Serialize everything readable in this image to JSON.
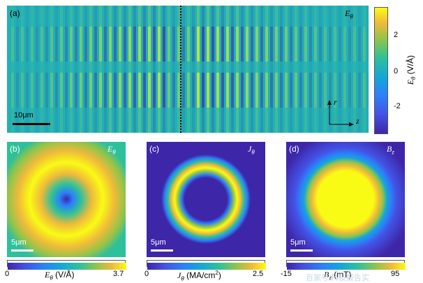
{
  "panel_a": {
    "label": "(a)",
    "field": "E",
    "field_sub": "θ",
    "scalebar": "10μm",
    "axis_r": "r",
    "axis_z": "z"
  },
  "colorbar_a": {
    "ticks": [
      "2",
      "0",
      "-2"
    ],
    "label_main": "E",
    "label_sub": "θ",
    "label_unit": " (V/Å)"
  },
  "panel_b": {
    "label": "(b)",
    "field": "E",
    "field_sub": "θ",
    "scalebar": "5μm",
    "cbar_min": "0",
    "cbar_max": "3.7",
    "cbar_label": "E",
    "cbar_label_sub": "θ",
    "cbar_unit": " (V/Å)"
  },
  "panel_c": {
    "label": "(c)",
    "field": "J",
    "field_sub": "θ",
    "scalebar": "5μm",
    "cbar_min": "0",
    "cbar_max": "2.5",
    "cbar_label": "J",
    "cbar_label_sub": "θ",
    "cbar_unit": " (MA/cm",
    "cbar_unit_sup": "2",
    "cbar_unit_end": ")"
  },
  "panel_d": {
    "label": "(d)",
    "field": "B",
    "field_sub": "z",
    "scalebar": "5μm",
    "cbar_min": "-15",
    "cbar_max": "95",
    "cbar_label": "B",
    "cbar_label_sub": "z",
    "cbar_unit": " (mT)"
  },
  "watermark": "百家号/科技报告实",
  "colors": {
    "parula_low": "#3e26a8",
    "parula_mid": "#14b4c4",
    "parula_high": "#f9fb15"
  }
}
